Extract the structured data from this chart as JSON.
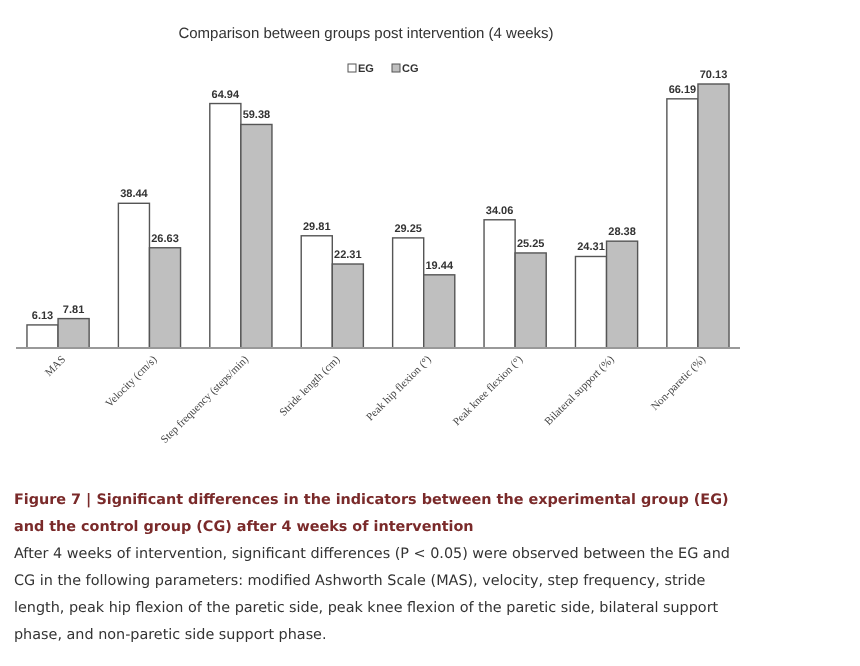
{
  "chart_data": {
    "type": "bar",
    "title": "Comparison between groups post intervention (4 weeks)",
    "categories": [
      "MAS",
      "Velocity (cm/s)",
      "Step frequency (steps/min)",
      "Stride length (cm)",
      "Peak hip flexion (°)",
      "Peak knee flexion (°)",
      "Bilateral support (%)",
      "Non-paretic (%)"
    ],
    "series": [
      {
        "name": "EG",
        "color": "#ffffff",
        "values": [
          6.13,
          38.44,
          64.94,
          29.81,
          29.25,
          34.06,
          24.31,
          66.19
        ]
      },
      {
        "name": "CG",
        "color": "#bfbfbf",
        "values": [
          7.81,
          26.63,
          59.38,
          22.31,
          19.44,
          25.25,
          28.38,
          70.13
        ]
      }
    ],
    "data_labels": true,
    "legend": "top",
    "annotations": [
      "Figure 7 | Significant differences in the indicators between the experimental group (EG) and the control group (CG) after 4 weeks of intervention",
      "After 4 weeks of intervention, significant differences (P < 0.05) were observed between the EG and CG in the following parameters: modified Ashworth Scale (MAS), velocity, step frequency, stride length, peak hip flexion of the paretic side, peak knee flexion of the paretic side, bilateral support phase, and non-paretic side support phase."
    ]
  }
}
